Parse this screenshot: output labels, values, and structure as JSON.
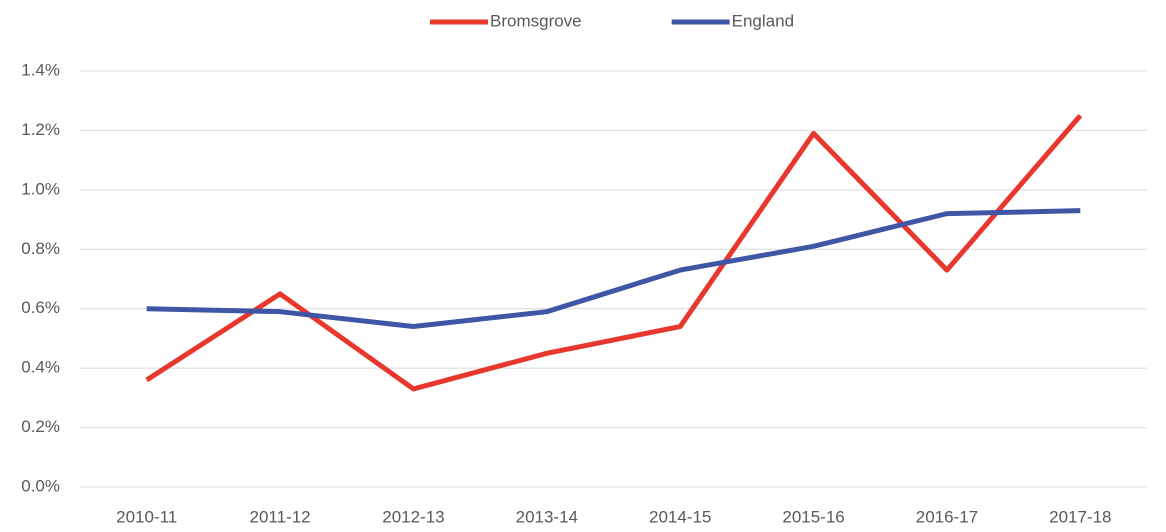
{
  "chart_data": {
    "type": "line",
    "categories": [
      "2010-11",
      "2011-12",
      "2012-13",
      "2013-14",
      "2014-15",
      "2015-16",
      "2016-17",
      "2017-18"
    ],
    "series": [
      {
        "name": "Bromsgrove",
        "color": "#e8382e",
        "values": [
          0.36,
          0.65,
          0.33,
          0.45,
          0.54,
          1.19,
          0.73,
          1.25
        ]
      },
      {
        "name": "England",
        "color": "#3f56a6",
        "values": [
          0.6,
          0.59,
          0.54,
          0.59,
          0.73,
          0.81,
          0.92,
          0.93
        ]
      }
    ],
    "ylim": [
      0,
      1.4
    ],
    "yticks": [
      {
        "value": 0,
        "label": "0.0%"
      },
      {
        "value": 0.2,
        "label": "0.2%"
      },
      {
        "value": 0.4,
        "label": "0.4%"
      },
      {
        "value": 0.6,
        "label": "0.6%"
      },
      {
        "value": 0.8,
        "label": "0.8%"
      },
      {
        "value": 1.0,
        "label": "1.0%"
      },
      {
        "value": 1.2,
        "label": "1.2%"
      },
      {
        "value": 1.4,
        "label": "1.4%"
      }
    ],
    "grid": true,
    "legend": "top"
  }
}
